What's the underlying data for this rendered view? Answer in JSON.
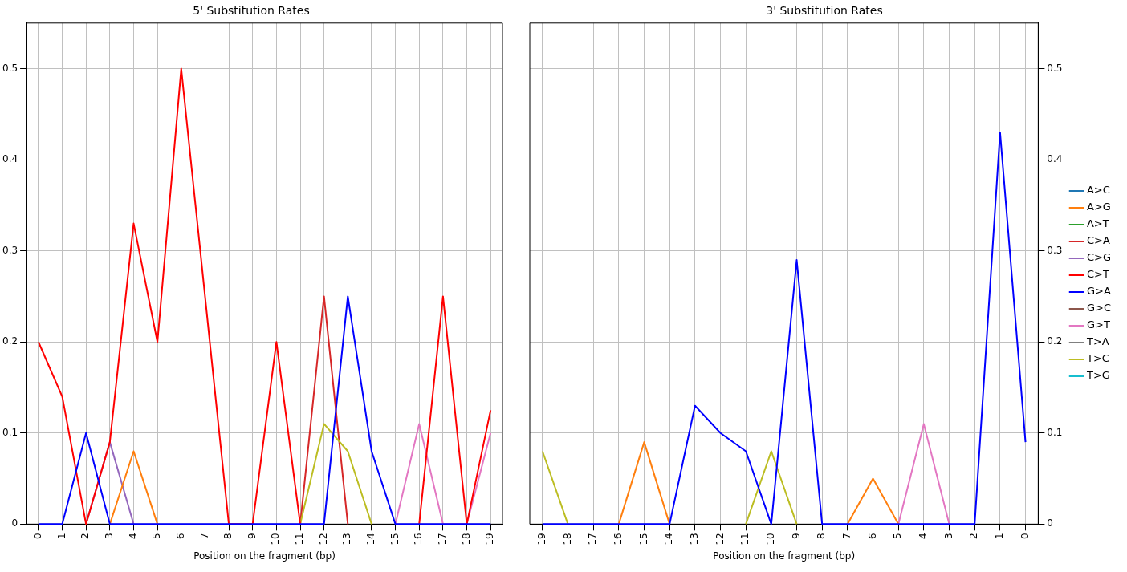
{
  "chart_data": [
    {
      "type": "line",
      "title": "5' Substitution Rates",
      "xlabel": "Position on the fragment (bp)",
      "categories": [
        "0",
        "1",
        "2",
        "3",
        "4",
        "5",
        "6",
        "7",
        "8",
        "9",
        "10",
        "11",
        "12",
        "13",
        "14",
        "15",
        "16",
        "17",
        "18",
        "19"
      ],
      "ylim": [
        0,
        0.55
      ],
      "yticks": [
        0,
        0.1,
        0.2,
        0.3,
        0.4,
        0.5
      ],
      "grid": true,
      "legend": false,
      "marker": "none",
      "line_style": "solid",
      "series": [
        {
          "color": "#ff7f0e",
          "values": [
            null,
            null,
            null,
            0,
            0.08,
            0,
            null,
            null,
            null,
            null,
            null,
            null,
            null,
            null,
            null,
            null,
            null,
            null,
            null,
            null
          ]
        },
        {
          "color": "#d62728",
          "values": [
            null,
            null,
            null,
            null,
            null,
            null,
            null,
            null,
            null,
            null,
            null,
            0,
            0.25,
            0,
            null,
            null,
            null,
            null,
            null,
            null
          ]
        },
        {
          "color": "#9467bd",
          "values": [
            null,
            null,
            0,
            0.09,
            0,
            null,
            null,
            null,
            null,
            null,
            null,
            null,
            null,
            null,
            null,
            null,
            null,
            null,
            null,
            null
          ]
        },
        {
          "color": "#ff0000",
          "values": [
            0.2,
            0.14,
            0,
            0.09,
            0.33,
            0.2,
            0.5,
            0.25,
            0,
            0,
            0.2,
            0,
            null,
            null,
            null,
            null,
            0,
            0.25,
            0,
            0.125
          ]
        },
        {
          "color": "#0000ff",
          "values": [
            0,
            0,
            0.1,
            0,
            0,
            0,
            0,
            0,
            0,
            0,
            0,
            0,
            0,
            0.25,
            0.08,
            0,
            0,
            0,
            0,
            0
          ]
        },
        {
          "color": "#e377c2",
          "values": [
            null,
            null,
            null,
            null,
            null,
            null,
            null,
            null,
            null,
            null,
            null,
            null,
            null,
            null,
            null,
            0,
            0.11,
            0,
            0,
            0.1
          ]
        },
        {
          "color": "#bcbd22",
          "values": [
            null,
            null,
            null,
            null,
            null,
            null,
            null,
            null,
            null,
            null,
            null,
            0,
            0.11,
            0.08,
            0,
            null,
            null,
            null,
            null,
            null
          ]
        }
      ]
    },
    {
      "type": "line",
      "title": "3' Substitution Rates",
      "xlabel": "Position on the fragment (bp)",
      "categories": [
        "19",
        "18",
        "17",
        "16",
        "15",
        "14",
        "13",
        "12",
        "11",
        "10",
        "9",
        "8",
        "7",
        "6",
        "5",
        "4",
        "3",
        "2",
        "1",
        "0"
      ],
      "ylim": [
        0,
        0.55
      ],
      "yticks": [
        0,
        0.1,
        0.2,
        0.3,
        0.4,
        0.5
      ],
      "grid": true,
      "legend": "right",
      "marker": "none",
      "line_style": "solid",
      "series": [
        {
          "name": "A>C",
          "color": "#1f77b4",
          "values": [
            null,
            null,
            null,
            null,
            null,
            null,
            null,
            null,
            null,
            null,
            null,
            null,
            null,
            null,
            null,
            null,
            null,
            null,
            null,
            null
          ]
        },
        {
          "name": "A>G",
          "color": "#ff7f0e",
          "values": [
            null,
            null,
            null,
            0,
            0.09,
            0,
            null,
            null,
            null,
            null,
            null,
            null,
            0,
            0.05,
            0,
            null,
            null,
            null,
            null,
            null
          ]
        },
        {
          "name": "A>T",
          "color": "#2ca02c",
          "values": [
            null,
            null,
            null,
            null,
            null,
            null,
            null,
            null,
            null,
            null,
            null,
            null,
            null,
            null,
            null,
            null,
            null,
            null,
            null,
            null
          ]
        },
        {
          "name": "C>A",
          "color": "#d62728",
          "values": [
            null,
            null,
            null,
            null,
            null,
            null,
            null,
            null,
            null,
            null,
            null,
            null,
            null,
            null,
            null,
            null,
            null,
            null,
            null,
            null
          ]
        },
        {
          "name": "C>G",
          "color": "#9467bd",
          "values": [
            null,
            null,
            null,
            null,
            null,
            null,
            null,
            null,
            null,
            null,
            null,
            null,
            null,
            null,
            null,
            null,
            null,
            null,
            null,
            null
          ]
        },
        {
          "name": "C>T",
          "color": "#ff0000",
          "values": [
            null,
            null,
            null,
            null,
            null,
            null,
            null,
            null,
            null,
            null,
            null,
            null,
            null,
            null,
            null,
            null,
            null,
            null,
            null,
            null
          ]
        },
        {
          "name": "G>A",
          "color": "#0000ff",
          "values": [
            0,
            0,
            0,
            0,
            0,
            0,
            0.13,
            0.1,
            0.08,
            0,
            0.29,
            0,
            0,
            0,
            0,
            0,
            0,
            0,
            0.43,
            0.09
          ]
        },
        {
          "name": "G>C",
          "color": "#8c564b",
          "values": [
            null,
            null,
            null,
            null,
            null,
            null,
            null,
            null,
            null,
            null,
            null,
            null,
            null,
            null,
            null,
            null,
            null,
            null,
            null,
            null
          ]
        },
        {
          "name": "G>T",
          "color": "#e377c2",
          "values": [
            null,
            null,
            null,
            null,
            null,
            null,
            null,
            null,
            null,
            null,
            null,
            null,
            null,
            null,
            0,
            0.11,
            0,
            null,
            null,
            null
          ]
        },
        {
          "name": "T>A",
          "color": "#7f7f7f",
          "values": [
            null,
            null,
            null,
            null,
            null,
            null,
            null,
            null,
            null,
            null,
            null,
            null,
            null,
            null,
            null,
            null,
            null,
            null,
            null,
            null
          ]
        },
        {
          "name": "T>C",
          "color": "#bcbd22",
          "values": [
            0.08,
            0,
            null,
            null,
            null,
            null,
            null,
            null,
            0,
            0.08,
            0,
            null,
            null,
            null,
            null,
            null,
            null,
            null,
            null,
            null
          ]
        },
        {
          "name": "T>G",
          "color": "#17becf",
          "values": [
            null,
            null,
            null,
            null,
            null,
            null,
            null,
            null,
            null,
            null,
            null,
            null,
            null,
            null,
            null,
            null,
            null,
            null,
            null,
            null
          ]
        }
      ]
    }
  ]
}
